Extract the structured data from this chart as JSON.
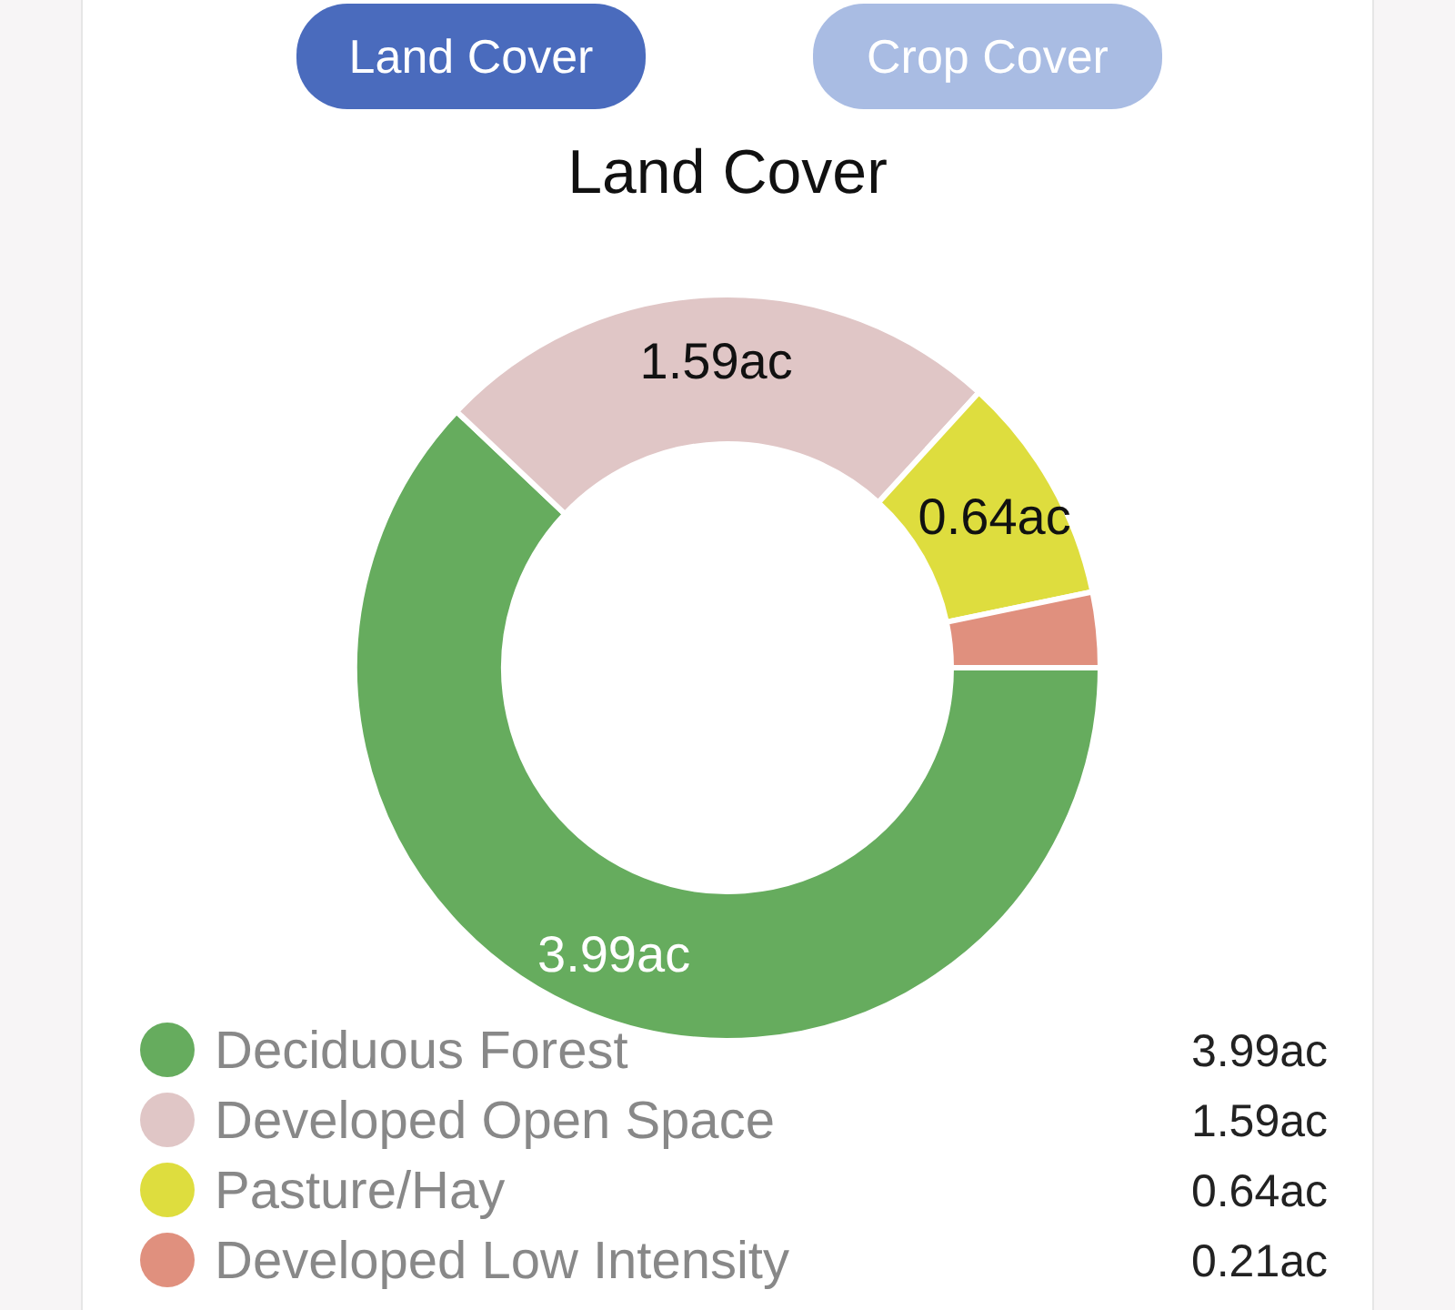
{
  "chart_data": {
    "type": "donut",
    "title": "Land Cover",
    "annotations": [
      "Land Cover",
      "Crop Cover"
    ],
    "categories": [
      "Deciduous Forest",
      "Developed Open Space",
      "Pasture/Hay",
      "Developed Low Intensity"
    ],
    "values": [
      3.99,
      1.59,
      0.64,
      0.21
    ],
    "colors": [
      "#66ac5e",
      "#e0c6c6",
      "#dedd3e",
      "#e0907e"
    ],
    "value_labels": [
      "3.99ac",
      "1.59ac",
      "0.64ac",
      "0.21ac"
    ],
    "legend": "bottom"
  }
}
